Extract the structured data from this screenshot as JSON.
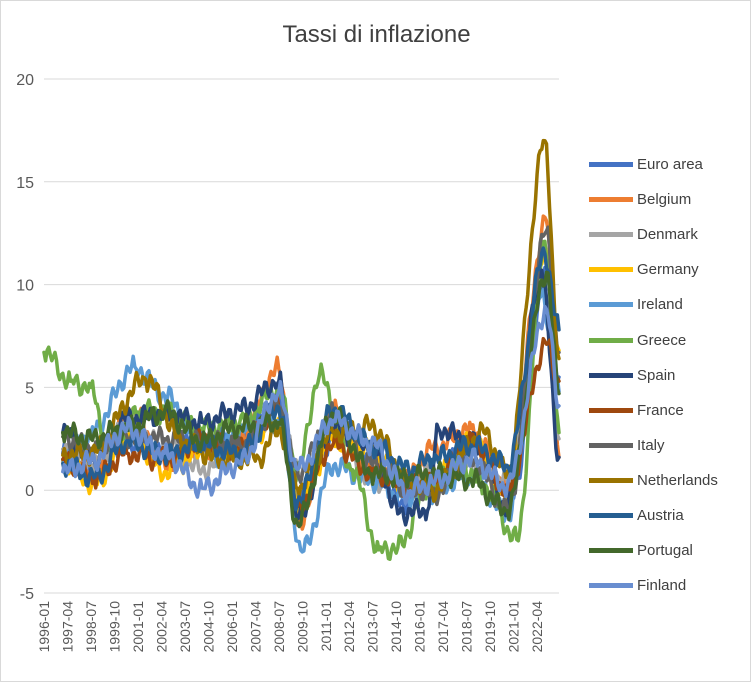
{
  "chart_data": {
    "type": "line",
    "title": "Tassi di inflazione",
    "xlabel": "",
    "ylabel": "",
    "ylim": [
      -5,
      20
    ],
    "yticks": [
      -5,
      0,
      5,
      10,
      15,
      20
    ],
    "grid": true,
    "legend_position": "right",
    "x_tick_labels": [
      "1996-01",
      "1997-04",
      "1998-07",
      "1999-10",
      "2001-01",
      "2002-04",
      "2003-07",
      "2004-10",
      "2006-01",
      "2007-04",
      "2008-07",
      "2009-10",
      "2011-01",
      "2012-04",
      "2013-07",
      "2014-10",
      "2016-01",
      "2017-04",
      "2018-07",
      "2019-10",
      "2021-01",
      "2022-04"
    ],
    "x_range": [
      "1996-01",
      "2023-06"
    ],
    "series": [
      {
        "name": "Euro area",
        "color": "#4472c4",
        "x": [
          "1997-01",
          "1998-07",
          "2000-06",
          "2002-06",
          "2004-06",
          "2006-06",
          "2008-07",
          "2009-07",
          "2011-10",
          "2013-06",
          "2015-01",
          "2016-06",
          "2018-10",
          "2020-12",
          "2022-10",
          "2023-06"
        ],
        "values": [
          1.8,
          1.0,
          2.3,
          2.0,
          2.4,
          2.5,
          4.1,
          -0.6,
          3.0,
          1.6,
          -0.6,
          0.1,
          2.3,
          -0.3,
          10.6,
          5.5
        ]
      },
      {
        "name": "Belgium",
        "color": "#ed7d31",
        "x": [
          "1997-01",
          "1998-09",
          "2000-09",
          "2002-06",
          "2004-06",
          "2006-06",
          "2008-07",
          "2009-07",
          "2011-06",
          "2013-06",
          "2015-06",
          "2016-09",
          "2018-10",
          "2020-09",
          "2022-10",
          "2023-06"
        ],
        "values": [
          1.5,
          0.8,
          3.9,
          1.3,
          2.0,
          2.5,
          5.9,
          -1.7,
          3.8,
          1.0,
          0.6,
          2.0,
          3.0,
          0.2,
          13.1,
          1.6
        ]
      },
      {
        "name": "Denmark",
        "color": "#a5a5a5",
        "x": [
          "1997-01",
          "1998-07",
          "2000-06",
          "2002-06",
          "2004-06",
          "2006-06",
          "2008-07",
          "2009-07",
          "2011-06",
          "2013-06",
          "2015-06",
          "2017-01",
          "2018-10",
          "2020-09",
          "2022-10",
          "2023-06"
        ],
        "values": [
          2.0,
          1.2,
          3.0,
          2.4,
          1.0,
          1.9,
          4.1,
          1.0,
          3.0,
          0.5,
          0.4,
          1.0,
          1.1,
          0.4,
          11.4,
          2.5
        ]
      },
      {
        "name": "Germany",
        "color": "#ffc000",
        "x": [
          "1997-01",
          "1998-09",
          "2000-09",
          "2002-06",
          "2004-06",
          "2006-06",
          "2008-07",
          "2009-07",
          "2011-06",
          "2013-06",
          "2015-06",
          "2016-09",
          "2018-10",
          "2020-09",
          "2022-10",
          "2023-06"
        ],
        "values": [
          1.4,
          0.3,
          2.6,
          0.9,
          1.9,
          2.0,
          3.5,
          -0.7,
          2.4,
          1.9,
          0.1,
          0.4,
          2.4,
          -0.4,
          11.6,
          6.8
        ]
      },
      {
        "name": "Ireland",
        "color": "#5b9bd5",
        "x": [
          "1997-01",
          "1998-07",
          "2000-11",
          "2002-06",
          "2004-06",
          "2005-03",
          "2006-06",
          "2008-07",
          "2009-10",
          "2011-06",
          "2013-06",
          "2015-01",
          "2016-06",
          "2018-10",
          "2020-09",
          "2022-07",
          "2023-06"
        ],
        "values": [
          1.5,
          2.8,
          6.0,
          4.6,
          2.2,
          1.5,
          3.0,
          3.3,
          -3.0,
          1.2,
          0.5,
          -0.3,
          -0.1,
          0.8,
          -1.2,
          9.6,
          4.8
        ]
      },
      {
        "name": "Greece",
        "color": "#70ad47",
        "x": [
          "1996-01",
          "1997-06",
          "1998-07",
          "1999-06",
          "2001-01",
          "2002-06",
          "2004-06",
          "2006-06",
          "2008-07",
          "2009-07",
          "2010-09",
          "2012-06",
          "2013-11",
          "2014-11",
          "2016-06",
          "2018-01",
          "2019-06",
          "2021-03",
          "2022-09",
          "2023-06"
        ],
        "values": [
          6.7,
          5.3,
          5.0,
          2.0,
          3.8,
          3.8,
          3.0,
          3.3,
          4.9,
          0.9,
          5.6,
          1.0,
          -2.9,
          -2.8,
          0.0,
          1.4,
          0.2,
          -2.4,
          12.1,
          2.8
        ]
      },
      {
        "name": "Spain",
        "color": "#264478",
        "x": [
          "1997-01",
          "1998-09",
          "2000-06",
          "2002-06",
          "2004-06",
          "2006-06",
          "2008-07",
          "2009-07",
          "2011-06",
          "2013-06",
          "2014-12",
          "2016-06",
          "2017-01",
          "2018-10",
          "2020-09",
          "2022-07",
          "2023-06"
        ],
        "values": [
          2.8,
          1.5,
          3.5,
          3.7,
          3.3,
          3.9,
          5.3,
          -1.4,
          3.0,
          2.2,
          -1.1,
          -1.0,
          3.0,
          2.3,
          -0.8,
          10.7,
          1.6
        ]
      },
      {
        "name": "France",
        "color": "#9e480e",
        "x": [
          "1997-01",
          "1998-09",
          "2000-06",
          "2002-06",
          "2004-06",
          "2006-06",
          "2008-07",
          "2009-07",
          "2011-06",
          "2013-06",
          "2015-06",
          "2016-09",
          "2018-10",
          "2020-09",
          "2022-10",
          "2023-06"
        ],
        "values": [
          1.5,
          0.5,
          1.8,
          1.5,
          2.4,
          2.0,
          4.0,
          -0.8,
          2.3,
          0.9,
          0.2,
          0.4,
          2.5,
          0.0,
          7.1,
          5.3
        ]
      },
      {
        "name": "Italy",
        "color": "#636363",
        "x": [
          "1997-01",
          "1998-07",
          "2000-06",
          "2002-06",
          "2004-06",
          "2006-06",
          "2008-07",
          "2009-07",
          "2011-06",
          "2013-06",
          "2015-06",
          "2016-09",
          "2018-10",
          "2020-09",
          "2022-10",
          "2023-06"
        ],
        "values": [
          2.6,
          2.0,
          2.6,
          2.5,
          2.3,
          2.2,
          4.1,
          0.8,
          3.7,
          1.3,
          0.2,
          -0.2,
          1.6,
          -1.0,
          12.6,
          6.7
        ]
      },
      {
        "name": "Netherlands",
        "color": "#997300",
        "x": [
          "1997-01",
          "1998-07",
          "2001-06",
          "2003-06",
          "2005-06",
          "2007-06",
          "2008-07",
          "2009-07",
          "2011-06",
          "2013-06",
          "2015-06",
          "2016-09",
          "2019-06",
          "2020-09",
          "2022-09",
          "2023-06"
        ],
        "values": [
          1.7,
          1.8,
          5.4,
          2.3,
          1.5,
          1.6,
          3.0,
          0.1,
          2.8,
          3.1,
          0.5,
          0.0,
          2.8,
          0.8,
          17.0,
          6.4
        ]
      },
      {
        "name": "Austria",
        "color": "#255e91",
        "x": [
          "1997-01",
          "1998-09",
          "2000-06",
          "2002-06",
          "2004-06",
          "2006-06",
          "2008-07",
          "2009-07",
          "2011-06",
          "2013-06",
          "2015-06",
          "2016-09",
          "2018-10",
          "2020-09",
          "2022-09",
          "2023-06"
        ],
        "values": [
          1.3,
          0.6,
          2.4,
          1.7,
          2.2,
          1.8,
          4.0,
          -0.5,
          3.9,
          2.2,
          1.0,
          1.5,
          2.2,
          1.2,
          11.5,
          7.8
        ]
      },
      {
        "name": "Portugal",
        "color": "#43682b",
        "x": [
          "1997-01",
          "1998-07",
          "2000-06",
          "2002-06",
          "2004-06",
          "2006-06",
          "2008-07",
          "2009-07",
          "2011-06",
          "2013-06",
          "2015-06",
          "2016-09",
          "2018-10",
          "2020-09",
          "2022-10",
          "2023-06"
        ],
        "values": [
          2.8,
          2.5,
          3.0,
          3.8,
          2.4,
          3.1,
          3.3,
          -1.6,
          3.7,
          0.8,
          0.6,
          0.8,
          0.5,
          -1.0,
          10.6,
          4.7
        ]
      },
      {
        "name": "Finland",
        "color": "#698ed0",
        "x": [
          "1997-01",
          "1998-07",
          "2000-06",
          "2002-06",
          "2004-06",
          "2006-06",
          "2008-07",
          "2009-07",
          "2011-06",
          "2013-06",
          "2015-06",
          "2016-09",
          "2018-10",
          "2020-09",
          "2022-10",
          "2023-06"
        ],
        "values": [
          0.9,
          1.4,
          3.0,
          1.8,
          0.1,
          1.3,
          4.8,
          1.0,
          3.4,
          2.3,
          -0.1,
          0.4,
          1.5,
          0.2,
          8.8,
          4.1
        ]
      }
    ]
  }
}
